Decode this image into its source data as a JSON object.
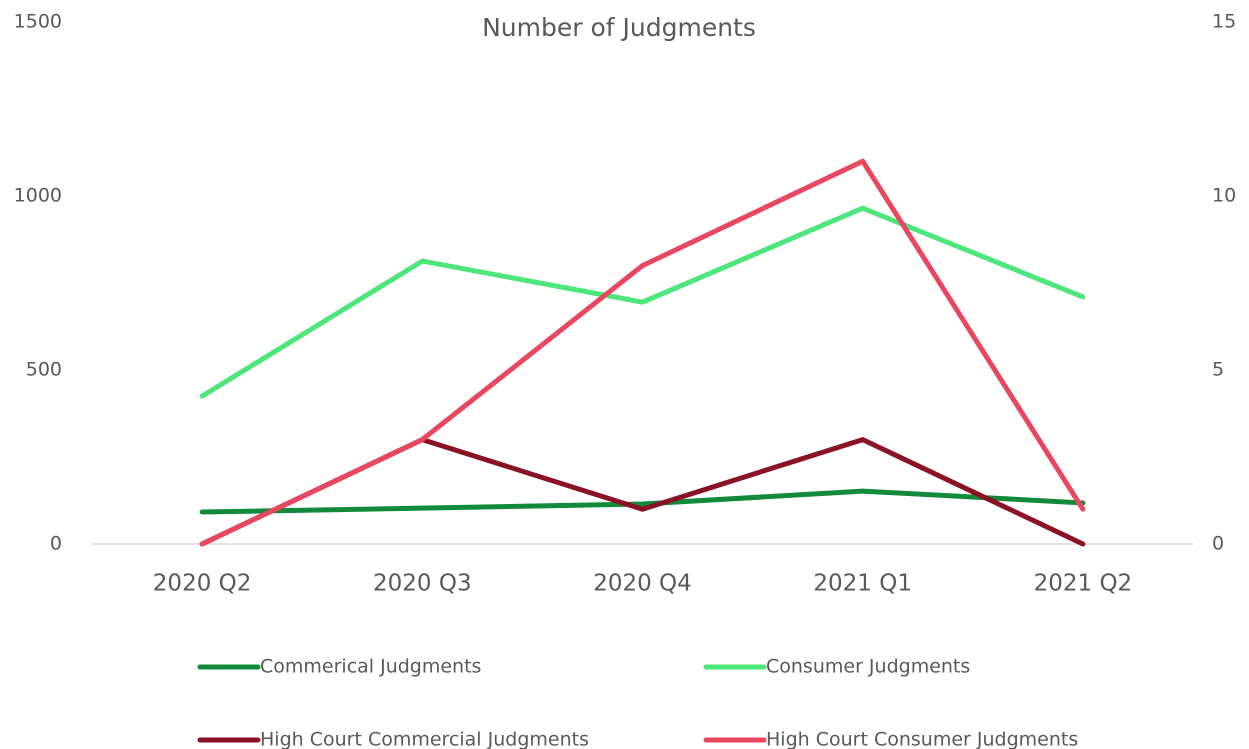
{
  "chart_data": {
    "type": "line",
    "title": "Number of Judgments",
    "categories": [
      "2020 Q2",
      "2020 Q3",
      "2020 Q4",
      "2021 Q1",
      "2021 Q2"
    ],
    "series": [
      {
        "name": "Commerical Judgments",
        "color": "#128a3a",
        "values": [
          92,
          103,
          115,
          152,
          118
        ]
      },
      {
        "name": "Consumer Judgments",
        "color": "#4ce67a",
        "values": [
          425,
          813,
          695,
          965,
          710
        ]
      },
      {
        "name": "High Court Commercial Judgments",
        "color": "#8b1225",
        "axis": "y2",
        "values": [
          0,
          3,
          1,
          3,
          0
        ]
      },
      {
        "name": "High Court Consumer Judgments",
        "color": "#e8475f",
        "axis": "y2",
        "values": [
          0,
          3,
          8,
          11,
          1
        ]
      }
    ],
    "ylim": [
      0,
      1500
    ],
    "yticks": [
      0,
      500,
      1000,
      1500
    ],
    "y2lim": [
      0,
      15
    ],
    "y2ticks": [
      0,
      5,
      10,
      15
    ],
    "legend": "bottom"
  }
}
